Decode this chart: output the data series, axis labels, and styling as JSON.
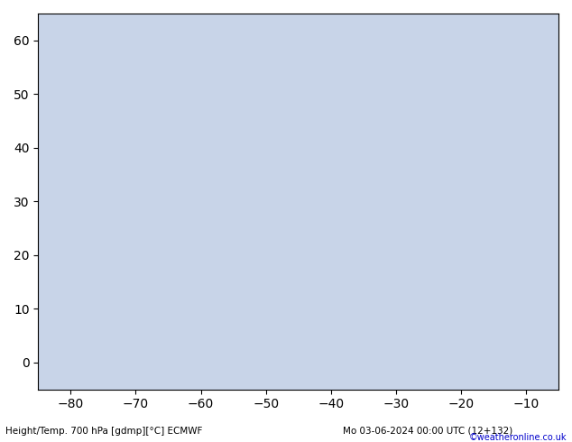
{
  "title": "",
  "bottom_label_left": "Height/Temp. 700 hPa [gdmp][°C] ECMWF",
  "bottom_label_right": "Mo 03-06-2024 00:00 UTC (12+132)",
  "credit": "©weatheronline.co.uk",
  "background_ocean": "#d0d8e8",
  "background_land": "#c8e0a0",
  "land_color": "#b8d890",
  "ocean_color": "#c8d4e8",
  "grid_color": "#aaaaaa",
  "contour_color_black": "#000000",
  "contour_color_magenta": "#ff00cc",
  "contour_color_red": "#ff0000",
  "figsize": [
    6.34,
    4.9
  ],
  "dpi": 100,
  "map_extent": [
    -85,
    -5,
    -5,
    65
  ],
  "lon_min": -85,
  "lon_max": -5,
  "lat_min": -5,
  "lat_max": 65,
  "lon_ticks": [
    -80,
    -70,
    -60,
    -50,
    -40,
    -30,
    -20,
    -10
  ],
  "lat_ticks": [
    0,
    10,
    20,
    30,
    40,
    50,
    60
  ],
  "tick_label_size": 7,
  "label_fontsize": 7.5,
  "credit_fontsize": 7,
  "credit_color": "#0000cc"
}
